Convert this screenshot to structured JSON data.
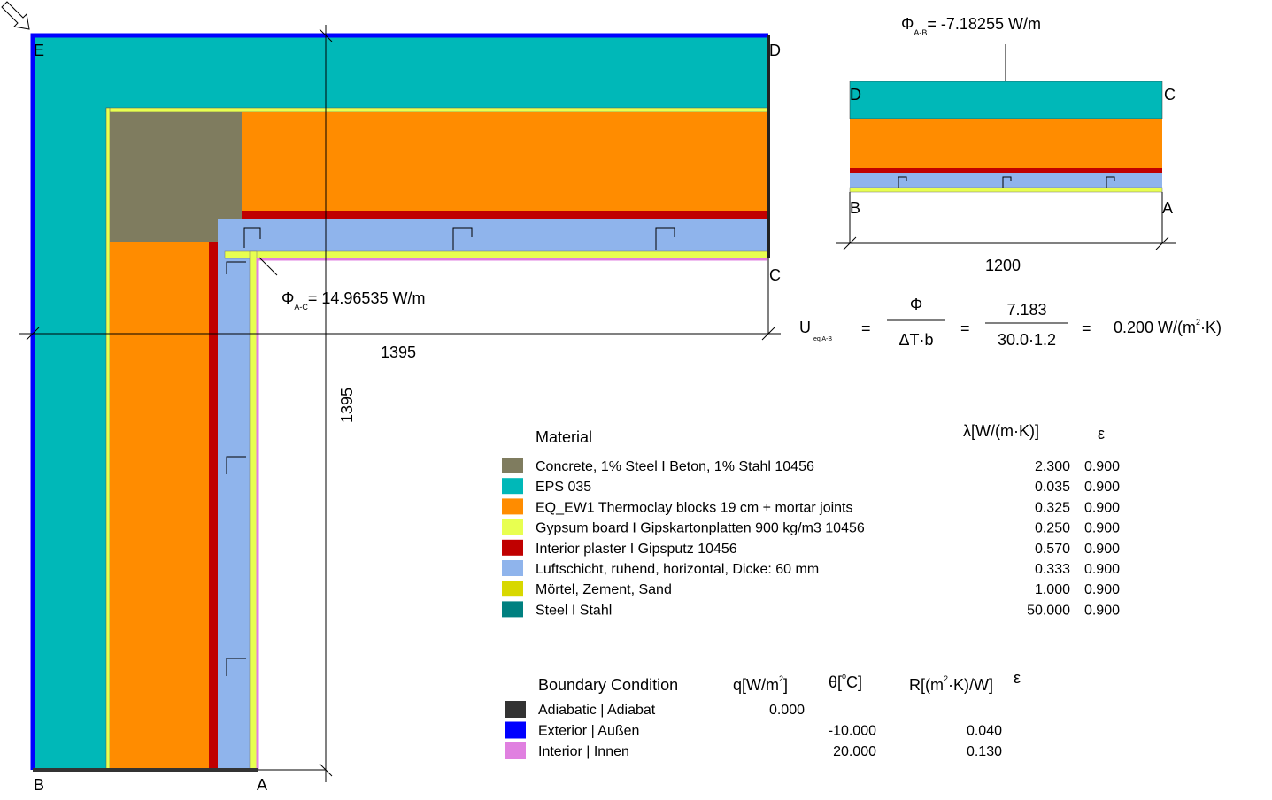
{
  "main_section": {
    "corners": {
      "e": "E",
      "d": "D",
      "c": "C",
      "b": "B",
      "a": "A"
    },
    "flux": {
      "symbol": "Φ",
      "subscript": "A-C",
      "text": "= 14.96535 W/m"
    },
    "dimensions": {
      "horizontal": "1395",
      "vertical": "1395"
    }
  },
  "equivalent_section": {
    "flux": {
      "symbol": "Φ",
      "subscript": "A-B",
      "text": "= -7.18255 W/m"
    },
    "corners": {
      "d": "D",
      "c": "C",
      "b": "B",
      "a": "A"
    },
    "dimension": "1200"
  },
  "equation": {
    "symbol": "U",
    "subscript": "eq A-B",
    "equals": [
      "=",
      "=",
      "="
    ],
    "fraction1": {
      "numerator": "Φ",
      "denominator": "ΔT·b"
    },
    "fraction2": {
      "numerator": "7.183",
      "denominator": "30.0·1.2"
    },
    "result": {
      "text": "0.200 W/(m",
      "superscript": "2",
      "tail": "·K)"
    }
  },
  "materials": {
    "header": {
      "name": "Material",
      "lambda": "λ[W/(m·K)]",
      "epsilon": "ε"
    },
    "rows": [
      {
        "name": "Concrete, 1% Steel  I  Beton, 1% Stahl  10456",
        "lambda": "2.300",
        "epsilon": "0.900",
        "color": "#7f7c5f"
      },
      {
        "name": "EPS 035",
        "lambda": "0.035",
        "epsilon": "0.900",
        "color": "#00b8b8"
      },
      {
        "name": "EQ_EW1  Thermoclay blocks 19 cm + mortar joints",
        "lambda": "0.325",
        "epsilon": "0.900",
        "color": "#ff8c00"
      },
      {
        "name": "Gypsum board  I  Gipskartonplatten 900 kg/m3 10456",
        "lambda": "0.250",
        "epsilon": "0.900",
        "color": "#e8ff50"
      },
      {
        "name": "Interior plaster  I  Gipsputz 10456",
        "lambda": "0.570",
        "epsilon": "0.900",
        "color": "#c00000"
      },
      {
        "name": "Luftschicht, ruhend, horizontal, Dicke: 60 mm",
        "lambda": "0.333",
        "epsilon": "0.900",
        "color": "#8fb4ec"
      },
      {
        "name": "Mörtel, Zement, Sand",
        "lambda": "1.000",
        "epsilon": "0.900",
        "color": "#d8d800"
      },
      {
        "name": "Steel  I  Stahl",
        "lambda": "50.000",
        "epsilon": "0.900",
        "color": "#008080"
      }
    ]
  },
  "boundary_conditions": {
    "header": {
      "name": "Boundary Condition",
      "q": "q[W/m",
      "q_sup": "2",
      "q_tail": "]",
      "theta": "θ[",
      "theta_sup": "o",
      "theta_tail": "C]",
      "r": "R[(m",
      "r_sup": "2",
      "r_tail": "·K)/W]",
      "epsilon": "ε"
    },
    "rows": [
      {
        "name": "Adiabatic |  Adiabat",
        "q": "0.000",
        "color": "#333333"
      },
      {
        "name": "Exterior |  Außen",
        "theta": "-10.000",
        "r": "0.040",
        "color": "#0000ff"
      },
      {
        "name": "Interior |  Innen",
        "theta": "20.000",
        "r": "0.130",
        "color": "#e080e0"
      }
    ]
  }
}
